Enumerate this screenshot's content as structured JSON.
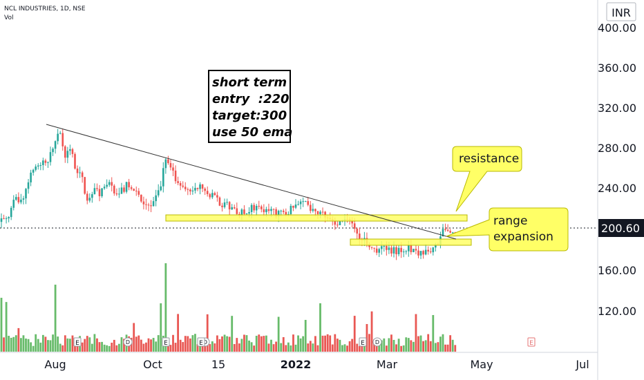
{
  "header": {
    "symbol_line": "NCL INDUSTRIES, 1D, NSE",
    "volume_label": "Vol"
  },
  "price_axis": {
    "currency": "INR",
    "ticks": [
      "400.00",
      "360.00",
      "320.00",
      "280.00",
      "240.00",
      "160.00",
      "120.00"
    ],
    "last_price": "200.60"
  },
  "time_axis": {
    "labels": [
      "Aug",
      "Oct",
      "15",
      "2022",
      "Mar",
      "May",
      "Jul"
    ]
  },
  "annotations": {
    "note_lines": [
      "short term",
      "entry  :220",
      "target:300",
      "use 50 ema"
    ],
    "resistance_label": "resistance",
    "range_label_lines": [
      "range",
      "expansion"
    ]
  },
  "event_markers": [
    "E",
    "D",
    "E",
    "D",
    "E",
    "E",
    "D",
    "E"
  ],
  "colors": {
    "up": "#26a69a",
    "down": "#ef5350",
    "vol_up": "#4caf50",
    "vol_down": "#e53935",
    "zone_fill": "#ffff66",
    "callout_fill": "#ffff66",
    "last_price_bg": "#131722"
  },
  "chart_data": {
    "type": "candlestick",
    "title": "NCL INDUSTRIES, 1D, NSE",
    "ylabel": "INR",
    "ylim": [
      95,
      425
    ],
    "x_labels": [
      "Aug",
      "Oct",
      "15",
      "2022",
      "Mar",
      "May",
      "Jul"
    ],
    "last_price": 200.6,
    "price_path": [
      [
        0,
        208
      ],
      [
        10,
        210
      ],
      [
        20,
        230
      ],
      [
        30,
        228
      ],
      [
        40,
        245
      ],
      [
        50,
        262
      ],
      [
        60,
        268
      ],
      [
        70,
        270
      ],
      [
        80,
        285
      ],
      [
        85,
        300
      ],
      [
        90,
        288
      ],
      [
        95,
        270
      ],
      [
        100,
        285
      ],
      [
        110,
        260
      ],
      [
        120,
        250
      ],
      [
        125,
        228
      ],
      [
        135,
        240
      ],
      [
        145,
        235
      ],
      [
        155,
        245
      ],
      [
        165,
        240
      ],
      [
        175,
        238
      ],
      [
        185,
        245
      ],
      [
        195,
        240
      ],
      [
        205,
        230
      ],
      [
        215,
        225
      ],
      [
        225,
        230
      ],
      [
        233,
        245
      ],
      [
        238,
        268
      ],
      [
        245,
        262
      ],
      [
        255,
        250
      ],
      [
        265,
        240
      ],
      [
        275,
        238
      ],
      [
        285,
        245
      ],
      [
        295,
        240
      ],
      [
        305,
        235
      ],
      [
        315,
        228
      ],
      [
        325,
        225
      ],
      [
        335,
        222
      ],
      [
        345,
        215
      ],
      [
        355,
        218
      ],
      [
        365,
        222
      ],
      [
        375,
        225
      ],
      [
        385,
        220
      ],
      [
        395,
        218
      ],
      [
        405,
        215
      ],
      [
        415,
        218
      ],
      [
        425,
        222
      ],
      [
        435,
        230
      ],
      [
        445,
        225
      ],
      [
        455,
        220
      ],
      [
        465,
        218
      ],
      [
        475,
        215
      ],
      [
        485,
        205
      ],
      [
        495,
        208
      ],
      [
        505,
        210
      ],
      [
        515,
        200
      ],
      [
        525,
        190
      ],
      [
        535,
        185
      ],
      [
        545,
        180
      ],
      [
        555,
        182
      ],
      [
        565,
        178
      ],
      [
        575,
        180
      ],
      [
        585,
        182
      ],
      [
        595,
        180
      ],
      [
        605,
        178
      ],
      [
        615,
        176
      ],
      [
        625,
        180
      ],
      [
        632,
        185
      ],
      [
        640,
        200
      ],
      [
        650,
        198
      ],
      [
        660,
        200
      ]
    ],
    "drawings": [
      {
        "type": "trendline",
        "from": [
          "2021-07-29",
          302
        ],
        "to": [
          "2022-04-05",
          192
        ]
      },
      {
        "type": "zone",
        "label": "resistance",
        "price_range": [
          207,
          213
        ]
      },
      {
        "type": "zone",
        "label": "range expansion",
        "price_range": [
          183,
          188
        ]
      }
    ]
  }
}
